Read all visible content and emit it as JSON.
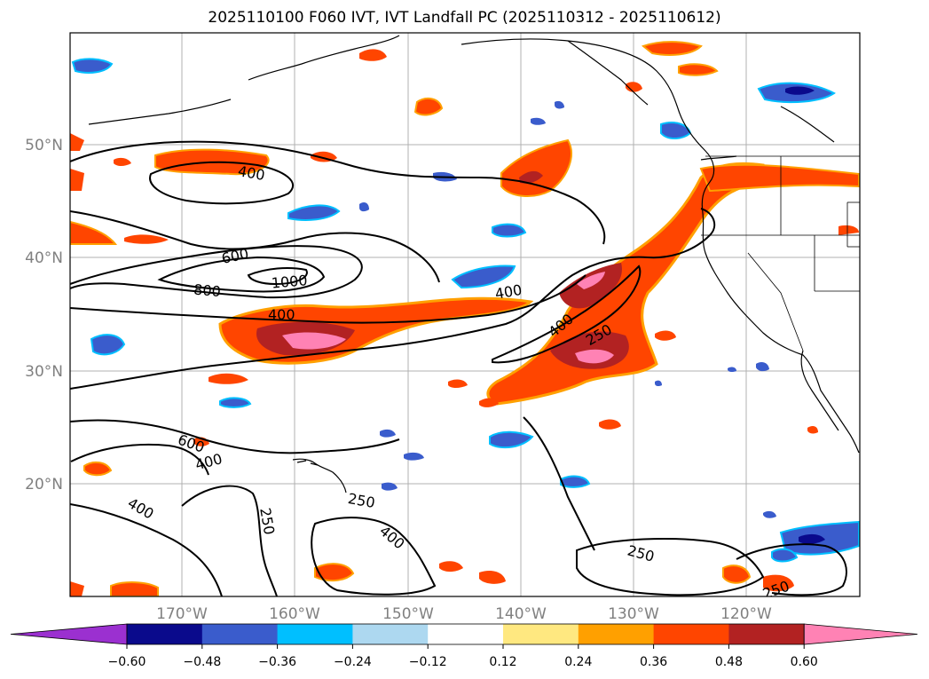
{
  "title": "2025110100 F060 IVT, IVT Landfall PC (2025110312 - 2025110612)",
  "map": {
    "lat_labels": [
      "50°N",
      "40°N",
      "30°N",
      "20°N"
    ],
    "lon_labels": [
      "170°W",
      "160°W",
      "150°W",
      "140°W",
      "130°W",
      "120°W"
    ],
    "contour_labels": [
      "400",
      "600",
      "800",
      "1000",
      "400",
      "400",
      "400",
      "250",
      "600",
      "400",
      "250",
      "250",
      "400",
      "250",
      "400",
      "250"
    ],
    "colors": {
      "land_outline": "#000000",
      "grid": "#b0b0b0",
      "contour": "#000000"
    }
  },
  "colorbar": {
    "ticks": [
      "−0.60",
      "−0.48",
      "−0.36",
      "−0.24",
      "−0.12",
      "0.12",
      "0.24",
      "0.36",
      "0.48",
      "0.60"
    ],
    "colors": [
      "#9b30d0",
      "#0a0a8c",
      "#3a5ccc",
      "#00bfff",
      "#add8f0",
      "#ffffff",
      "#ffe880",
      "#ffa000",
      "#ff4500",
      "#b22222",
      "#ff82b4"
    ]
  }
}
